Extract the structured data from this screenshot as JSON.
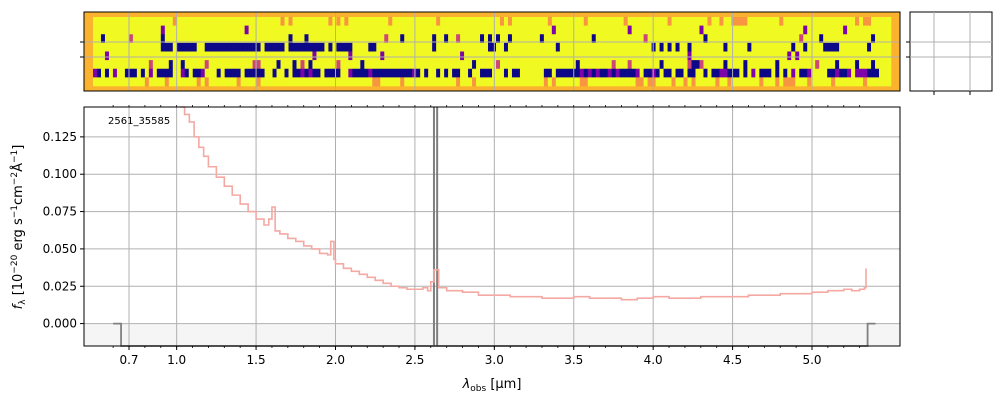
{
  "chart_data": [
    {
      "type": "heatmap",
      "description_role": "2D spectrum image panel",
      "xlim": [
        0.6,
        5.4
      ],
      "grid": true,
      "colormap": [
        "#0d0887",
        "#7e03a8",
        "#cc4778",
        "#f89540",
        "#f0f921"
      ],
      "rows": [
        {
          "row": 1,
          "value": "background"
        },
        {
          "row": 2,
          "value": "mostly high"
        },
        {
          "row": 3,
          "value": "mixed"
        },
        {
          "row": 4,
          "value": "low band 1.0-2.0 um"
        },
        {
          "row": 5,
          "value": "high"
        },
        {
          "row": 6,
          "value": "mixed"
        },
        {
          "row": 7,
          "value": "low band"
        },
        {
          "row": 8,
          "value": "background"
        }
      ]
    },
    {
      "type": "heatmap",
      "description_role": "small side panel (empty)",
      "grid": true
    },
    {
      "type": "line",
      "annotation": "2561_35585",
      "xlabel_main": "λ",
      "xlabel_sub": "obs",
      "xlabel_unit": " [μm]",
      "ylabel": "f_λ [10^-20 erg s^-1 cm^-2 Å^-1]",
      "ylabel_parts": {
        "f": "f",
        "lambda": "λ",
        "bracket_open": " [10",
        "exp1": "−20",
        "erg": " erg s",
        "exp2": "−1",
        "cm": "cm",
        "exp3": "−2",
        "ang": "Å",
        "exp4": "−1",
        "bracket_close": "]"
      },
      "ylim": [
        -0.015,
        0.145
      ],
      "xticks": [
        {
          "value": 0.7,
          "label": "0.7"
        },
        {
          "value": 1.0,
          "label": "1.0"
        },
        {
          "value": 1.5,
          "label": "1.5"
        },
        {
          "value": 2.0,
          "label": "2.0"
        },
        {
          "value": 2.5,
          "label": "2.5"
        },
        {
          "value": 3.0,
          "label": "3.0"
        },
        {
          "value": 3.5,
          "label": "3.5"
        },
        {
          "value": 4.0,
          "label": "4.0"
        },
        {
          "value": 4.5,
          "label": "4.5"
        },
        {
          "value": 5.0,
          "label": "5.0"
        }
      ],
      "yticks": [
        {
          "value": 0.0,
          "label": "0.000"
        },
        {
          "value": 0.025,
          "label": "0.025"
        },
        {
          "value": 0.05,
          "label": "0.050"
        },
        {
          "value": 0.075,
          "label": "0.075"
        },
        {
          "value": 0.1,
          "label": "0.100"
        },
        {
          "value": 0.125,
          "label": "0.125"
        }
      ],
      "vlines": [
        2.62,
        2.64
      ],
      "series": [
        {
          "role": "flux",
          "color": "#f4a9a3",
          "x": [
            1.02,
            1.05,
            1.08,
            1.11,
            1.14,
            1.17,
            1.2,
            1.25,
            1.3,
            1.35,
            1.4,
            1.45,
            1.5,
            1.55,
            1.58,
            1.6,
            1.62,
            1.65,
            1.7,
            1.75,
            1.8,
            1.85,
            1.9,
            1.95,
            1.97,
            1.99,
            2.0,
            2.05,
            2.1,
            2.15,
            2.2,
            2.25,
            2.3,
            2.35,
            2.4,
            2.45,
            2.5,
            2.55,
            2.58,
            2.6,
            2.62,
            2.65,
            2.7,
            2.8,
            2.9,
            3.0,
            3.1,
            3.2,
            3.3,
            3.4,
            3.5,
            3.6,
            3.7,
            3.8,
            3.9,
            4.0,
            4.1,
            4.2,
            4.3,
            4.4,
            4.5,
            4.6,
            4.7,
            4.8,
            4.9,
            5.0,
            5.1,
            5.2,
            5.25,
            5.3,
            5.33,
            5.34
          ],
          "y": [
            0.145,
            0.14,
            0.135,
            0.125,
            0.118,
            0.112,
            0.105,
            0.098,
            0.092,
            0.086,
            0.08,
            0.075,
            0.07,
            0.066,
            0.07,
            0.078,
            0.062,
            0.06,
            0.057,
            0.055,
            0.052,
            0.05,
            0.047,
            0.046,
            0.055,
            0.043,
            0.04,
            0.037,
            0.035,
            0.033,
            0.031,
            0.029,
            0.027,
            0.025,
            0.024,
            0.023,
            0.023,
            0.024,
            0.022,
            0.028,
            0.036,
            0.024,
            0.022,
            0.021,
            0.019,
            0.019,
            0.018,
            0.018,
            0.017,
            0.017,
            0.018,
            0.017,
            0.017,
            0.016,
            0.017,
            0.018,
            0.017,
            0.017,
            0.018,
            0.018,
            0.018,
            0.019,
            0.019,
            0.02,
            0.02,
            0.021,
            0.022,
            0.023,
            0.022,
            0.023,
            0.024,
            0.037
          ]
        },
        {
          "role": "edges",
          "color": "#808080",
          "x": [
            0.6,
            0.65,
            0.65,
            5.35,
            5.35,
            5.4
          ],
          "y": [
            0.0,
            0.0,
            -0.015,
            -0.015,
            0.0,
            0.0
          ]
        }
      ]
    }
  ]
}
